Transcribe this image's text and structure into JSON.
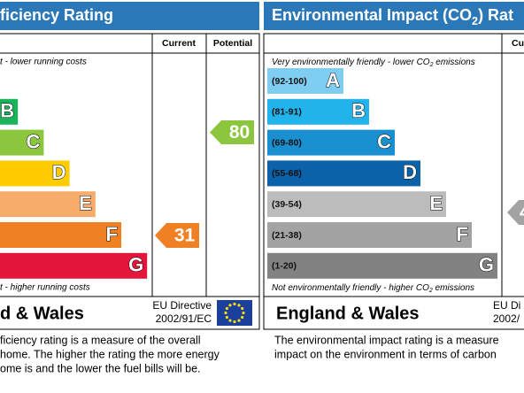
{
  "energy_panel": {
    "title": "ficiency Rating",
    "columns": [
      "Current",
      "Potential"
    ],
    "top_note": "t - lower running costs",
    "bands": [
      "B",
      "C",
      "D",
      "E",
      "F",
      "G"
    ],
    "bottom_note": "t - higher running costs",
    "current": 31,
    "potential": 80,
    "region": "d & Wales",
    "directive": [
      "EU Directive",
      "2002/91/EC"
    ],
    "description": [
      "ficiency rating is a measure of the overall",
      "home.  The higher the rating the more energy",
      "ome is and the lower the fuel bills will be."
    ]
  },
  "environmental_panel": {
    "title": [
      "Environmental Impact (CO",
      "2",
      ") Rat"
    ],
    "columns": [
      "Cu"
    ],
    "top_note": [
      "Very environmentally friendly - lower CO",
      "2",
      " emissions"
    ],
    "bands": [
      {
        "range": "(92-100)",
        "letter": "A"
      },
      {
        "range": "(81-91)",
        "letter": "B"
      },
      {
        "range": "(69-80)",
        "letter": "C"
      },
      {
        "range": "(55-68)",
        "letter": "D"
      },
      {
        "range": "(39-54)",
        "letter": "E"
      },
      {
        "range": "(21-38)",
        "letter": "F"
      },
      {
        "range": "(1-20)",
        "letter": "G"
      }
    ],
    "bottom_note": [
      "Not environmentally friendly - higher CO",
      "2",
      " emissions"
    ],
    "current": 4,
    "region": "England & Wales",
    "directive": [
      "EU Di",
      "2002/"
    ],
    "description": [
      "The environmental impact rating is a measure",
      "impact on the environment in terms of carbon"
    ]
  }
}
